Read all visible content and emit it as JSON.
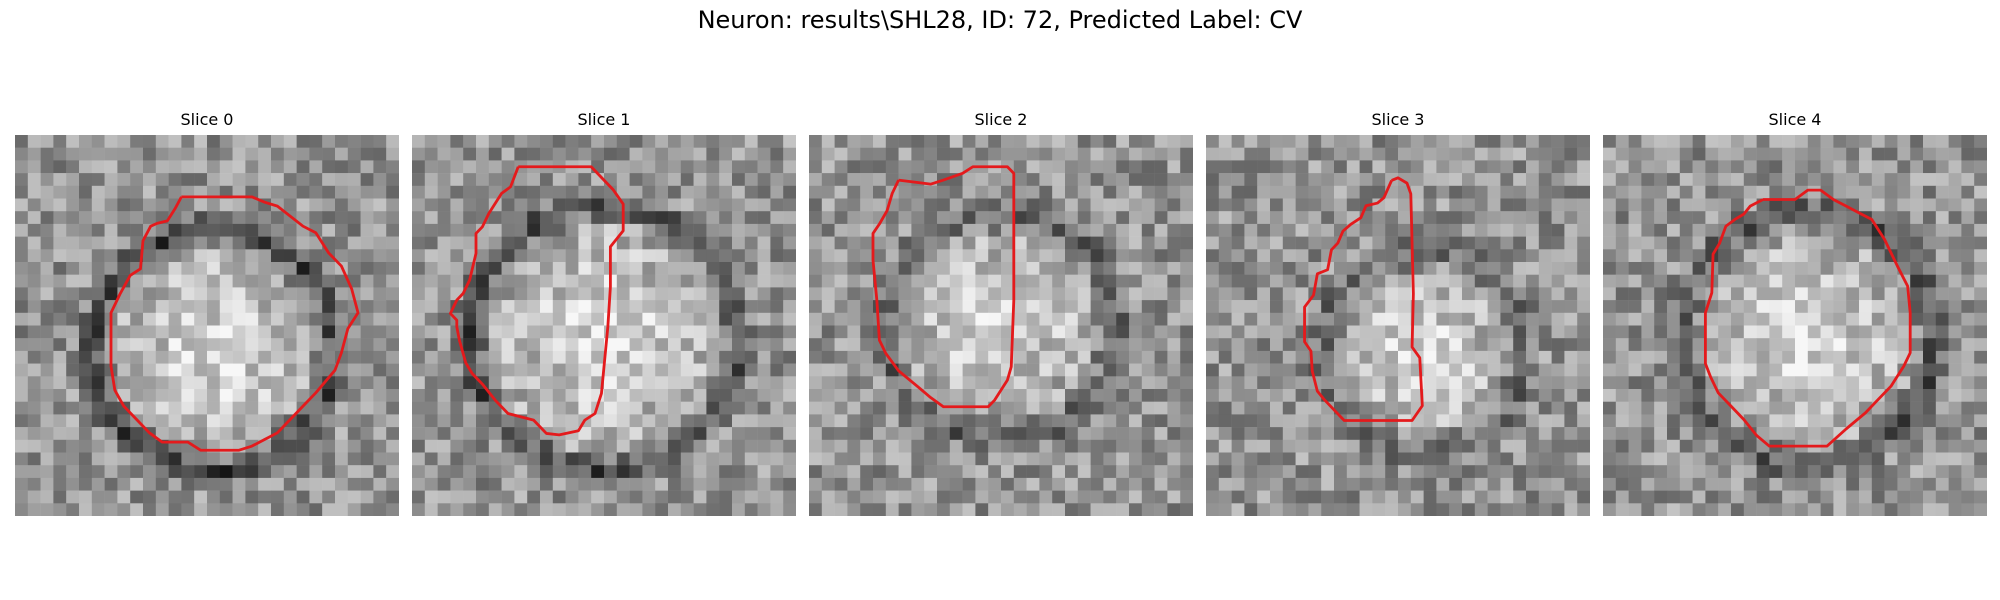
{
  "figure": {
    "title": "Neuron: results\\SHL28, ID: 72, Predicted Label: CV"
  },
  "colors": {
    "contour": "#e41a1c",
    "cmap": "gray"
  },
  "panels": [
    {
      "title": "Slice 0",
      "contour": [
        [
          8.5,
          1.3
        ],
        [
          14,
          1.3
        ],
        [
          15,
          1.7
        ],
        [
          16,
          2
        ],
        [
          18,
          3.5
        ],
        [
          19,
          4
        ],
        [
          20,
          5.5
        ],
        [
          21,
          6.5
        ],
        [
          21.8,
          8.2
        ],
        [
          22.3,
          10
        ],
        [
          21.5,
          11.2
        ],
        [
          21,
          13
        ],
        [
          20.5,
          14.3
        ],
        [
          19,
          16
        ],
        [
          18,
          17
        ],
        [
          17,
          18
        ],
        [
          16,
          19
        ],
        [
          15,
          19.5
        ],
        [
          14,
          20
        ],
        [
          13,
          20.3
        ],
        [
          10,
          20.3
        ],
        [
          9,
          19.7
        ],
        [
          7,
          19.7
        ],
        [
          6,
          19
        ],
        [
          5,
          18
        ],
        [
          4,
          17
        ],
        [
          3.3,
          15.8
        ],
        [
          3,
          14
        ],
        [
          3,
          10
        ],
        [
          3.7,
          8.6
        ],
        [
          4.5,
          7.2
        ],
        [
          5.3,
          6.7
        ],
        [
          5.5,
          4.6
        ],
        [
          6.1,
          3.5
        ],
        [
          6.6,
          3.3
        ],
        [
          7.4,
          3.1
        ],
        [
          8,
          2.2
        ],
        [
          8.5,
          1.3
        ]
      ]
    },
    {
      "title": "Slice 1",
      "contour": [
        [
          5.8,
          0
        ],
        [
          11.5,
          0
        ],
        [
          13.2,
          1.7
        ],
        [
          14,
          2.8
        ],
        [
          14,
          4.8
        ],
        [
          13,
          6
        ],
        [
          13,
          9
        ],
        [
          12.8,
          12
        ],
        [
          12.5,
          15
        ],
        [
          12.3,
          17
        ],
        [
          11.8,
          18.5
        ],
        [
          11,
          19
        ],
        [
          10.5,
          19.8
        ],
        [
          9,
          20.1
        ],
        [
          8,
          20
        ],
        [
          7,
          19
        ],
        [
          5,
          18.5
        ],
        [
          4,
          17.5
        ],
        [
          3,
          16.3
        ],
        [
          2.2,
          15.5
        ],
        [
          1.7,
          14.7
        ],
        [
          1.2,
          13
        ],
        [
          1,
          12
        ],
        [
          1,
          11.5
        ],
        [
          0.5,
          11
        ],
        [
          1,
          10
        ],
        [
          1.5,
          9.5
        ],
        [
          2,
          8.5
        ],
        [
          2.5,
          6.5
        ],
        [
          2.5,
          5
        ],
        [
          3,
          4.5
        ],
        [
          3.5,
          3.5
        ],
        [
          4.5,
          2
        ],
        [
          5.2,
          1.5
        ],
        [
          5.8,
          0
        ]
      ]
    },
    {
      "title": "Slice 2",
      "contour": [
        [
          4.5,
          1
        ],
        [
          7,
          1.3
        ],
        [
          8,
          1
        ],
        [
          9.5,
          0.5
        ],
        [
          10.3,
          0
        ],
        [
          13,
          0
        ],
        [
          13.5,
          0.5
        ],
        [
          13.5,
          10
        ],
        [
          13.3,
          15
        ],
        [
          13,
          16
        ],
        [
          12,
          17.5
        ],
        [
          11.5,
          18
        ],
        [
          8,
          18
        ],
        [
          7,
          17.3
        ],
        [
          6,
          16.5
        ],
        [
          4.5,
          15.3
        ],
        [
          3.5,
          14
        ],
        [
          3,
          13
        ],
        [
          2.8,
          10
        ],
        [
          2.5,
          7
        ],
        [
          2.5,
          5
        ],
        [
          3,
          4.3
        ],
        [
          3.6,
          3.3
        ],
        [
          4,
          2
        ],
        [
          4.5,
          1
        ]
      ]
    },
    {
      "title": "Slice 3",
      "contour": [
        [
          12,
          1.5
        ],
        [
          12.5,
          1.3
        ],
        [
          13.2,
          1.7
        ],
        [
          13.5,
          2.5
        ],
        [
          13.7,
          10
        ],
        [
          13.6,
          14
        ],
        [
          14.2,
          14.8
        ],
        [
          14.4,
          18.4
        ],
        [
          13.6,
          19.5
        ],
        [
          8.3,
          19.5
        ],
        [
          7.5,
          18.7
        ],
        [
          6.7,
          17.9
        ],
        [
          6.2,
          17.3
        ],
        [
          5.8,
          15.8
        ],
        [
          5.7,
          14.3
        ],
        [
          5.2,
          13.6
        ],
        [
          5.2,
          11
        ],
        [
          5.9,
          10.1
        ],
        [
          6.2,
          8.5
        ],
        [
          7,
          8.2
        ],
        [
          7.3,
          6.7
        ],
        [
          7.8,
          6.2
        ],
        [
          8.2,
          5.3
        ],
        [
          8.8,
          4.8
        ],
        [
          9.6,
          4.3
        ],
        [
          10,
          3.4
        ],
        [
          10.9,
          3.2
        ],
        [
          11.4,
          2.8
        ],
        [
          12,
          1.5
        ]
      ]
    },
    {
      "title": "Slice 4",
      "contour": [
        [
          9.5,
          1.5
        ],
        [
          12,
          1.5
        ],
        [
          13,
          0.8
        ],
        [
          14,
          0.8
        ],
        [
          15,
          1.5
        ],
        [
          16,
          2
        ],
        [
          17,
          2.5
        ],
        [
          18,
          3
        ],
        [
          19,
          4.5
        ],
        [
          20,
          6.5
        ],
        [
          20.8,
          8
        ],
        [
          21,
          10
        ],
        [
          21,
          13
        ],
        [
          20.5,
          14
        ],
        [
          19.5,
          15.5
        ],
        [
          18.5,
          16.5
        ],
        [
          17.5,
          17.5
        ],
        [
          16,
          18.7
        ],
        [
          14.5,
          20
        ],
        [
          10,
          20
        ],
        [
          9,
          19.2
        ],
        [
          8,
          18
        ],
        [
          7,
          17
        ],
        [
          6,
          16
        ],
        [
          5.4,
          14.8
        ],
        [
          5,
          13.8
        ],
        [
          5,
          10
        ],
        [
          5.5,
          8.5
        ],
        [
          5.6,
          5.6
        ],
        [
          6.1,
          4.8
        ],
        [
          6.6,
          3.5
        ],
        [
          7.3,
          3
        ],
        [
          8,
          2.6
        ],
        [
          8.5,
          2
        ],
        [
          9.5,
          1.5
        ]
      ]
    }
  ]
}
